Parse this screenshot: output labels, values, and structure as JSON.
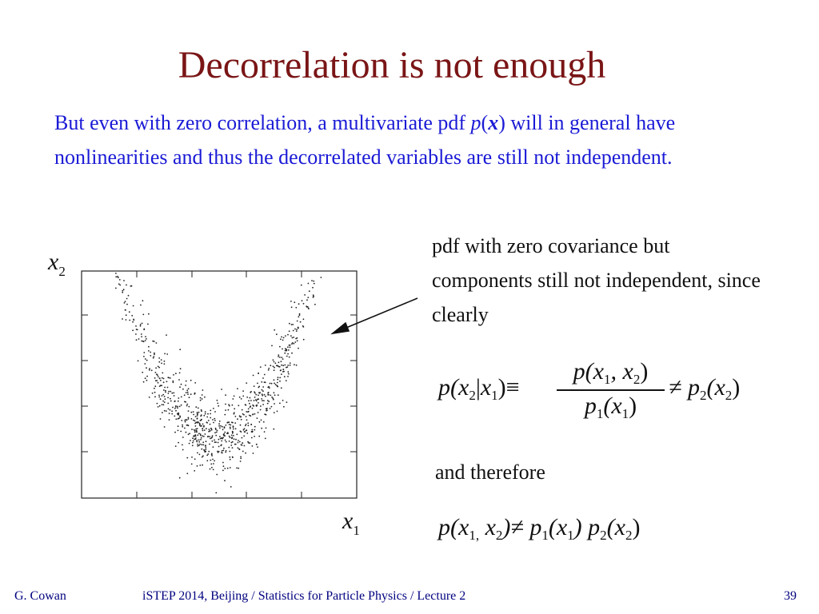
{
  "slide": {
    "title": "Decorrelation is not enough",
    "intro": {
      "part1": "But even with zero correlation, a multivariate pdf ",
      "p": "p",
      "x_open": "(",
      "x_bold": "x",
      "x_close": ")",
      "part2": " will in general have nonlinearities and thus the decorrelated variables are still not independent."
    },
    "note": "pdf with zero covariance but components still not independent, since clearly",
    "therefore": "and therefore",
    "eq1": {
      "lhs_p": "p(",
      "lhs_x2": "x",
      "lhs_sub2": "2",
      "lhs_bar": "|",
      "lhs_x1": "x",
      "lhs_sub1": "1",
      "lhs_close": ")≡",
      "num": "p(x",
      "num_sub1": "1",
      "num_mid": ", x",
      "num_sub2": "2",
      "num_close": ")",
      "den": "p",
      "den_sub": "1",
      "den_rest": "(x",
      "den_sub2": "1",
      "den_close": ")",
      "rhs": "≠ p",
      "rhs_sub": "2",
      "rhs_rest": "(x",
      "rhs_sub2": "2",
      "rhs_close": ")"
    },
    "eq2": {
      "a": "p(x",
      "a_sub": "1,",
      "b": " x",
      "b_sub": "2",
      "c": ")≠ p",
      "c_sub": "1",
      "d": "(x",
      "d_sub": "1",
      "e": ") p",
      "e_sub": "2",
      "f": "(x",
      "f_sub": "2",
      "g": ")"
    }
  },
  "plot": {
    "ylabel": "x",
    "ylabel_sub": "2",
    "xlabel": "x",
    "xlabel_sub": "1"
  },
  "chart_data": {
    "type": "scatter",
    "title": "",
    "xlabel": "x1",
    "ylabel": "x2",
    "shape": "parabola",
    "points_approx": 1000,
    "grid": false
  },
  "footer": {
    "author": "G. Cowan",
    "center": "iSTEP 2014, Beijing / Statistics for Particle Physics / Lecture 2",
    "page": "39"
  },
  "colors": {
    "title": "#7a1516",
    "intro": "#1a1ad6",
    "footer": "#000080"
  }
}
